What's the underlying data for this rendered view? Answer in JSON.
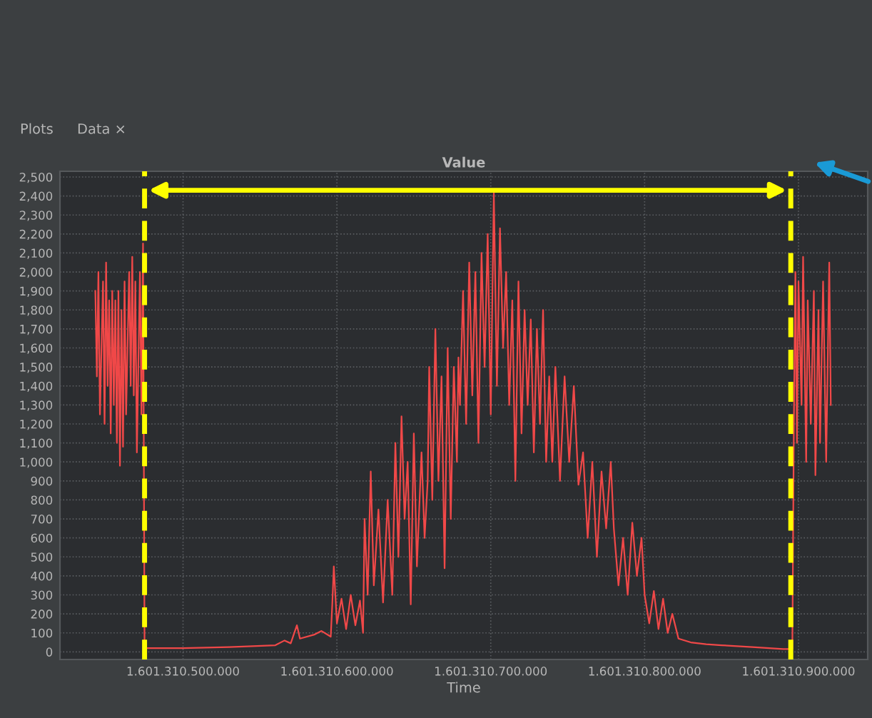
{
  "chart_data": {
    "type": "line",
    "title": "Value",
    "xlabel": "Time",
    "annotations": [
      "Plots",
      "Data ×"
    ],
    "x": [
      1601310443000,
      1601310444000,
      1601310445000,
      1601310446000,
      1601310448000,
      1601310449000,
      1601310450000,
      1601310451000,
      1601310452000,
      1601310453000,
      1601310454000,
      1601310455000,
      1601310456000,
      1601310457000,
      1601310458000,
      1601310459000,
      1601310460000,
      1601310461000,
      1601310462000,
      1601310463000,
      1601310465000,
      1601310466000,
      1601310467000,
      1601310468000,
      1601310469000,
      1601310470000,
      1601310472000,
      1601310473000,
      1601310474000,
      1601310475000,
      1601310500000,
      1601310530000,
      1601310560000,
      1601310566000,
      1601310570000,
      1601310574000,
      1601310576000,
      1601310585000,
      1601310590000,
      1601310596000,
      1601310597000,
      1601310598000,
      1601310600000,
      1601310603000,
      1601310606000,
      1601310609000,
      1601310612000,
      1601310615000,
      1601310617000,
      1601310618000,
      1601310620000,
      1601310622000,
      1601310624000,
      1601310627000,
      1601310630000,
      1601310633000,
      1601310636000,
      1601310637000,
      1601310638000,
      1601310640000,
      1601310642000,
      1601310644000,
      1601310646000,
      1601310648000,
      1601310650000,
      1601310652000,
      1601310655000,
      1601310657000,
      1601310659000,
      1601310660000,
      1601310662000,
      1601310664000,
      1601310666000,
      1601310668000,
      1601310670000,
      1601310672000,
      1601310674000,
      1601310676000,
      1601310678000,
      1601310679000,
      1601310680000,
      1601310682000,
      1601310684000,
      1601310686000,
      1601310688000,
      1601310690000,
      1601310692000,
      1601310694000,
      1601310696000,
      1601310698000,
      1601310700000,
      1601310702000,
      1601310704000,
      1601310706000,
      1601310708000,
      1601310710000,
      1601310712000,
      1601310714000,
      1601310716000,
      1601310718000,
      1601310720000,
      1601310722000,
      1601310724000,
      1601310726000,
      1601310728000,
      1601310730000,
      1601310732000,
      1601310734000,
      1601310736000,
      1601310738000,
      1601310740000,
      1601310742000,
      1601310745000,
      1601310748000,
      1601310751000,
      1601310754000,
      1601310757000,
      1601310760000,
      1601310763000,
      1601310766000,
      1601310769000,
      1601310772000,
      1601310775000,
      1601310778000,
      1601310780000,
      1601310783000,
      1601310786000,
      1601310789000,
      1601310792000,
      1601310795000,
      1601310798000,
      1601310800000,
      1601310803000,
      1601310806000,
      1601310809000,
      1601310812000,
      1601310815000,
      1601310818000,
      1601310822000,
      1601310830000,
      1601310840000,
      1601310850000,
      1601310870000,
      1601310890000,
      1601310896000,
      1601310897000,
      1601310898000,
      1601310899000,
      1601310900000,
      1601310902000,
      1601310903000,
      1601310905000,
      1601310906000,
      1601310908000,
      1601310910000,
      1601310911000,
      1601310913000,
      1601310914000,
      1601310916000,
      1601310918000,
      1601310920000,
      1601310921000
    ],
    "series": [
      {
        "color": "#f04848",
        "values": [
          1900,
          1450,
          2000,
          1250,
          1950,
          1200,
          2050,
          1400,
          1850,
          1150,
          1900,
          1300,
          1850,
          1100,
          1900,
          980,
          1800,
          1080,
          1950,
          1250,
          2000,
          1400,
          2080,
          1350,
          1950,
          1050,
          2000,
          1250,
          2150,
          20,
          20,
          25,
          35,
          60,
          45,
          140,
          70,
          90,
          110,
          80,
          250,
          450,
          150,
          280,
          120,
          300,
          140,
          270,
          100,
          700,
          300,
          950,
          350,
          750,
          260,
          800,
          300,
          700,
          1100,
          500,
          1240,
          700,
          1000,
          250,
          1150,
          450,
          1050,
          600,
          900,
          1500,
          800,
          1700,
          900,
          1450,
          440,
          1600,
          700,
          1500,
          1000,
          1550,
          1300,
          1900,
          1200,
          2050,
          1350,
          2000,
          1100,
          2100,
          1500,
          2200,
          1250,
          2415,
          1400,
          2230,
          1600,
          2000,
          1300,
          1850,
          900,
          1950,
          1150,
          1800,
          1300,
          1750,
          1050,
          1700,
          1200,
          1800,
          1000,
          1450,
          1000,
          1500,
          900,
          1450,
          1000,
          1400,
          880,
          1050,
          600,
          1000,
          500,
          950,
          650,
          1000,
          650,
          350,
          600,
          300,
          680,
          400,
          600,
          300,
          150,
          320,
          120,
          280,
          100,
          200,
          70,
          50,
          40,
          35,
          25,
          15,
          15,
          1200,
          2000,
          1100,
          1950,
          1300,
          2080,
          1000,
          1850,
          1200,
          1900,
          930,
          1800,
          1100,
          1950,
          1000,
          2050,
          1300
        ]
      }
    ],
    "xlim": [
      1601310420000,
      1601310945000
    ],
    "xticks": [
      {
        "value": 1601310500000,
        "label": "1.601.310.500.000"
      },
      {
        "value": 1601310600000,
        "label": "1.601.310.600.000"
      },
      {
        "value": 1601310700000,
        "label": "1.601.310.700.000"
      },
      {
        "value": 1601310800000,
        "label": "1.601.310.800.000"
      },
      {
        "value": 1601310900000,
        "label": "1.601.310.900.000"
      }
    ],
    "ylim": [
      -40,
      2530
    ],
    "yticks": [
      0,
      100,
      200,
      300,
      400,
      500,
      600,
      700,
      800,
      900,
      {
        "value": 1000,
        "label": "1,000"
      },
      {
        "value": 1100,
        "label": "1,100"
      },
      {
        "value": 1200,
        "label": "1,200"
      },
      {
        "value": 1300,
        "label": "1,300"
      },
      {
        "value": 1400,
        "label": "1,400"
      },
      {
        "value": 1500,
        "label": "1,500"
      },
      {
        "value": 1600,
        "label": "1,600"
      },
      {
        "value": 1700,
        "label": "1,700"
      },
      {
        "value": 1800,
        "label": "1,800"
      },
      {
        "value": 1900,
        "label": "1,900"
      },
      {
        "value": 2000,
        "label": "2,000"
      },
      {
        "value": 2100,
        "label": "2,100"
      },
      {
        "value": 2200,
        "label": "2,200"
      },
      {
        "value": 2300,
        "label": "2,300"
      },
      {
        "value": 2400,
        "label": "2,400"
      },
      {
        "value": 2500,
        "label": "2,500"
      }
    ],
    "ref_lines": [
      {
        "axis": "x",
        "value": 1601310475000,
        "color": "#ffff00",
        "line_style": "dashed"
      },
      {
        "axis": "x",
        "value": 1601310895000,
        "color": "#ffff00",
        "line_style": "dashed"
      }
    ],
    "grid": true,
    "marker": "none",
    "line_style": "solid",
    "legend": false
  }
}
